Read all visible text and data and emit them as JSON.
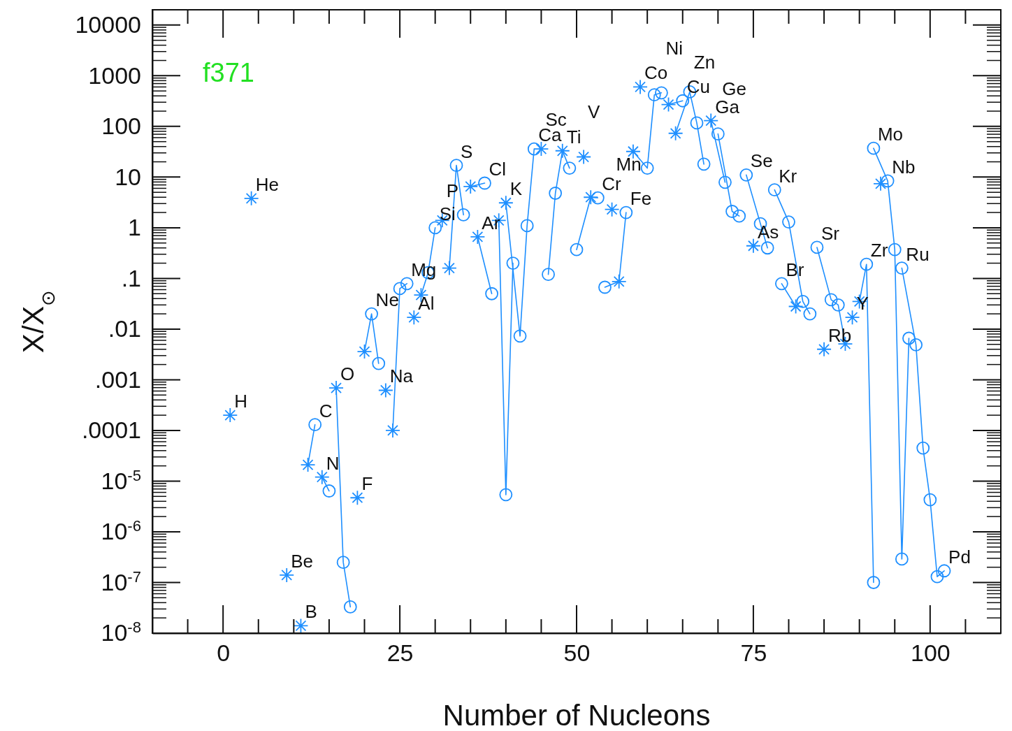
{
  "chart_data": {
    "type": "scatter",
    "title": "f371",
    "xlabel": "Number of Nucleons",
    "ylabel": "X/X$_{⊙}$",
    "log": "y",
    "grid": false,
    "xlim": [
      -10,
      110
    ],
    "ylim": [
      1e-08,
      20000
    ],
    "xticks": [
      0,
      25,
      50,
      75,
      100
    ],
    "yticks": [
      10000,
      1000,
      100,
      10,
      1,
      {
        "value": 0.1,
        "label": ".1"
      },
      {
        "value": 0.01,
        "label": ".01"
      },
      {
        "value": 0.001,
        "label": ".001"
      },
      {
        "value": 0.0001,
        "label": ".0001"
      },
      {
        "value": 1e-05,
        "label": "10$^{-5}$"
      },
      {
        "value": 1e-06,
        "label": "10$^{-6}$"
      },
      {
        "value": 1e-07,
        "label": "10$^{-7}$"
      },
      {
        "value": 1e-08,
        "label": "10$^{-8}$"
      }
    ],
    "series": [
      {
        "type": "line",
        "marker": "none",
        "color": "#1e8fff",
        "x": [
          12,
          13
        ],
        "values": [
          2.1e-05,
          0.00013
        ]
      },
      {
        "type": "line",
        "marker": "none",
        "color": "#1e8fff",
        "x": [
          14,
          15
        ],
        "values": [
          1.2e-05,
          6.4e-06
        ]
      },
      {
        "type": "line",
        "marker": "none",
        "color": "#1e8fff",
        "x": [
          16,
          17,
          18
        ],
        "values": [
          0.00069,
          2.5e-07,
          3.3e-08
        ]
      },
      {
        "type": "line",
        "marker": "none",
        "color": "#1e8fff",
        "x": [
          20,
          21,
          22
        ],
        "values": [
          0.0036,
          0.02,
          0.0021
        ]
      },
      {
        "type": "line",
        "marker": "none",
        "color": "#1e8fff",
        "x": [
          24,
          25,
          26
        ],
        "values": [
          0.0001,
          0.063,
          0.079
        ]
      },
      {
        "type": "line",
        "marker": "none",
        "color": "#1e8fff",
        "x": [
          28,
          29,
          30
        ],
        "values": [
          0.047,
          0.13,
          1.0
        ]
      },
      {
        "type": "line",
        "marker": "none",
        "color": "#1e8fff",
        "x": [
          32,
          33,
          34
        ],
        "values": [
          0.16,
          17,
          1.8
        ]
      },
      {
        "type": "line",
        "marker": "none",
        "color": "#1e8fff",
        "x": [
          35,
          37
        ],
        "values": [
          6.5,
          7.6
        ]
      },
      {
        "type": "line",
        "marker": "none",
        "color": "#1e8fff",
        "x": [
          36,
          38
        ],
        "values": [
          0.66,
          0.05
        ]
      },
      {
        "type": "line",
        "marker": "none",
        "color": "#1e8fff",
        "x": [
          39,
          40,
          41
        ],
        "values": [
          1.4,
          5.4e-06,
          0.2
        ]
      },
      {
        "type": "line",
        "marker": "none",
        "color": "#1e8fff",
        "x": [
          40,
          42,
          43,
          44
        ],
        "values": [
          3.1,
          0.0073,
          1.1,
          36
        ]
      },
      {
        "type": "line",
        "marker": "none",
        "color": "#1e8fff",
        "x": [
          46,
          47,
          48,
          49
        ],
        "values": [
          0.12,
          4.8,
          33,
          15
        ]
      },
      {
        "type": "line",
        "marker": "none",
        "color": "#1e8fff",
        "x": [
          50,
          52,
          53
        ],
        "values": [
          0.37,
          4.0,
          3.9
        ]
      },
      {
        "type": "line",
        "marker": "none",
        "color": "#1e8fff",
        "x": [
          54,
          56,
          57
        ],
        "values": [
          0.067,
          0.087,
          2.0
        ]
      },
      {
        "type": "line",
        "marker": "none",
        "color": "#1e8fff",
        "x": [
          58,
          60,
          61,
          62
        ],
        "values": [
          32,
          15,
          420,
          460
        ]
      },
      {
        "type": "line",
        "marker": "none",
        "color": "#1e8fff",
        "x": [
          63,
          65
        ],
        "values": [
          270,
          320
        ]
      },
      {
        "type": "line",
        "marker": "none",
        "color": "#1e8fff",
        "x": [
          64,
          66,
          67,
          68
        ],
        "values": [
          73,
          480,
          117,
          18
        ]
      },
      {
        "type": "line",
        "marker": "none",
        "color": "#1e8fff",
        "x": [
          69,
          71
        ],
        "values": [
          130,
          7.9
        ]
      },
      {
        "type": "line",
        "marker": "none",
        "color": "#1e8fff",
        "x": [
          70,
          72,
          73
        ],
        "values": [
          71,
          2.1,
          1.7
        ]
      },
      {
        "type": "line",
        "marker": "none",
        "color": "#1e8fff",
        "x": [
          74,
          76,
          77
        ],
        "values": [
          11,
          1.2,
          0.4
        ]
      },
      {
        "type": "line",
        "marker": "none",
        "color": "#1e8fff",
        "x": [
          78,
          80,
          82,
          83
        ],
        "values": [
          5.6,
          1.3,
          0.035,
          0.02
        ]
      },
      {
        "type": "line",
        "marker": "none",
        "color": "#1e8fff",
        "x": [
          79,
          81
        ],
        "values": [
          0.079,
          0.028
        ]
      },
      {
        "type": "line",
        "marker": "none",
        "color": "#1e8fff",
        "x": [
          84,
          86,
          87,
          88
        ],
        "values": [
          0.41,
          0.038,
          0.03,
          0.0051
        ]
      },
      {
        "type": "line",
        "marker": "none",
        "color": "#1e8fff",
        "x": [
          90,
          91,
          92
        ],
        "values": [
          0.035,
          0.19,
          1e-07
        ]
      },
      {
        "type": "line",
        "marker": "none",
        "color": "#1e8fff",
        "x": [
          92,
          94,
          95,
          96,
          97
        ],
        "values": [
          37,
          8.4,
          0.37,
          2.9e-07,
          0.0066
        ]
      },
      {
        "type": "line",
        "marker": "none",
        "color": "#1e8fff",
        "x": [
          96,
          98,
          99,
          100,
          101,
          102
        ],
        "values": [
          0.16,
          0.0049,
          4.5e-05,
          4.3e-06,
          1.3e-07,
          1.7e-07
        ]
      },
      {
        "marker": "cross",
        "color": "#1e8fff",
        "x": [
          1,
          4,
          9,
          11,
          12,
          14,
          16,
          19,
          20,
          23,
          24,
          27,
          28,
          31,
          32,
          35,
          36,
          39,
          40,
          45,
          48,
          51,
          52,
          55,
          56,
          58,
          59,
          63,
          64,
          69,
          75,
          81,
          85,
          88,
          89,
          90,
          93
        ],
        "values": [
          0.0002,
          3.8,
          1.4e-07,
          1.4e-08,
          2.1e-05,
          1.2e-05,
          0.00069,
          4.7e-06,
          0.0036,
          0.00062,
          0.0001,
          0.017,
          0.047,
          1.4,
          0.16,
          6.5,
          0.66,
          1.4,
          3.1,
          36,
          33,
          25,
          4.0,
          2.3,
          0.087,
          32,
          600,
          270,
          73,
          130,
          0.44,
          0.028,
          0.004,
          0.0051,
          0.017,
          0.035,
          7.4
        ]
      },
      {
        "marker": "circle",
        "color": "#1e8fff",
        "x": [
          13,
          15,
          17,
          18,
          21,
          22,
          25,
          26,
          29,
          30,
          33,
          34,
          37,
          38,
          40,
          41,
          42,
          43,
          44,
          46,
          47,
          49,
          50,
          53,
          54,
          57,
          60,
          61,
          62,
          65,
          66,
          67,
          68,
          70,
          71,
          72,
          73,
          74,
          76,
          77,
          78,
          79,
          80,
          82,
          83,
          84,
          86,
          87,
          91,
          92,
          92,
          94,
          95,
          96,
          96,
          97,
          98,
          99,
          100,
          101,
          102
        ],
        "values": [
          0.00013,
          6.4e-06,
          2.5e-07,
          3.3e-08,
          0.02,
          0.0021,
          0.063,
          0.079,
          0.13,
          1.0,
          17,
          1.8,
          7.6,
          0.05,
          5.4e-06,
          0.2,
          0.0073,
          1.1,
          36,
          0.12,
          4.8,
          15,
          0.37,
          3.9,
          0.067,
          2.0,
          15,
          420,
          460,
          320,
          480,
          117,
          18,
          71,
          7.9,
          2.1,
          1.7,
          11,
          1.2,
          0.4,
          5.6,
          0.079,
          1.3,
          0.035,
          0.02,
          0.41,
          0.038,
          0.03,
          0.19,
          1e-07,
          37,
          8.4,
          0.37,
          2.9e-07,
          0.16,
          0.0066,
          0.0049,
          4.5e-05,
          4.3e-06,
          1.3e-07,
          1.7e-07
        ]
      }
    ],
    "annotations": [
      {
        "text": "H",
        "x": 1,
        "y": 0.0002
      },
      {
        "text": "He",
        "x": 4,
        "y": 3.8
      },
      {
        "text": "Be",
        "x": 9,
        "y": 1.4e-07
      },
      {
        "text": "B",
        "x": 11,
        "y": 1.4e-08
      },
      {
        "text": "C",
        "x": 13,
        "y": 0.00013
      },
      {
        "text": "N",
        "x": 14,
        "y": 1.2e-05
      },
      {
        "text": "O",
        "x": 16,
        "y": 0.00069
      },
      {
        "text": "F",
        "x": 19,
        "y": 4.7e-06
      },
      {
        "text": "Ne",
        "x": 21,
        "y": 0.02
      },
      {
        "text": "Na",
        "x": 23,
        "y": 0.00062
      },
      {
        "text": "Mg",
        "x": 26,
        "y": 0.079
      },
      {
        "text": "Al",
        "x": 27,
        "y": 0.017
      },
      {
        "text": "Si",
        "x": 30,
        "y": 1.0
      },
      {
        "text": "P",
        "x": 31,
        "y": 1.4
      },
      {
        "text": "S",
        "x": 33,
        "y": 17
      },
      {
        "text": "Cl",
        "x": 37,
        "y": 7.6
      },
      {
        "text": "Ar",
        "x": 36,
        "y": 0.66
      },
      {
        "text": "K",
        "x": 40,
        "y": 3.1
      },
      {
        "text": "Ca",
        "x": 44,
        "y": 36
      },
      {
        "text": "Sc",
        "x": 45,
        "y": 36
      },
      {
        "text": "Ti",
        "x": 48,
        "y": 33
      },
      {
        "text": "V",
        "x": 51,
        "y": 25
      },
      {
        "text": "Cr",
        "x": 53,
        "y": 3.9
      },
      {
        "text": "Mn",
        "x": 55,
        "y": 2.3
      },
      {
        "text": "Fe",
        "x": 57,
        "y": 2.0
      },
      {
        "text": "Co",
        "x": 59,
        "y": 600
      },
      {
        "text": "Ni",
        "x": 62,
        "y": 460
      },
      {
        "text": "Cu",
        "x": 65,
        "y": 320
      },
      {
        "text": "Zn",
        "x": 66,
        "y": 480
      },
      {
        "text": "Ga",
        "x": 69,
        "y": 130
      },
      {
        "text": "Ge",
        "x": 70,
        "y": 71
      },
      {
        "text": "Se",
        "x": 74,
        "y": 11
      },
      {
        "text": "Kr",
        "x": 78,
        "y": 5.6
      },
      {
        "text": "As",
        "x": 75,
        "y": 0.44
      },
      {
        "text": "Br",
        "x": 79,
        "y": 0.079
      },
      {
        "text": "Sr",
        "x": 84,
        "y": 0.41
      },
      {
        "text": "Rb",
        "x": 85,
        "y": 0.004
      },
      {
        "text": "Zr",
        "x": 91,
        "y": 0.19
      },
      {
        "text": "Y",
        "x": 89,
        "y": 0.017
      },
      {
        "text": "Mo",
        "x": 92,
        "y": 37
      },
      {
        "text": "Nb",
        "x": 94,
        "y": 8.4
      },
      {
        "text": "Ru",
        "x": 96,
        "y": 0.16
      },
      {
        "text": "Pd",
        "x": 102,
        "y": 1.7e-07
      }
    ]
  }
}
